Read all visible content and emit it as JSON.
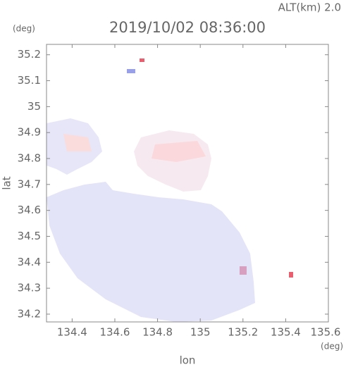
{
  "chart_data": {
    "type": "map",
    "annotation": "ALT(km) 2.0",
    "y_unit": "(deg)",
    "title": "2019/10/02 08:36:00",
    "y_label": "lat",
    "x_label": "lon",
    "x_unit": "(deg)",
    "xlim": [
      134.28,
      135.6
    ],
    "ylim": [
      34.17,
      35.24
    ],
    "xticks": [
      134.4,
      134.6,
      134.8,
      135.0,
      135.2,
      135.4,
      135.6
    ],
    "yticks": [
      34.2,
      34.3,
      34.4,
      34.5,
      34.6,
      34.7,
      34.8,
      34.9,
      35.0,
      35.1,
      35.2
    ]
  }
}
